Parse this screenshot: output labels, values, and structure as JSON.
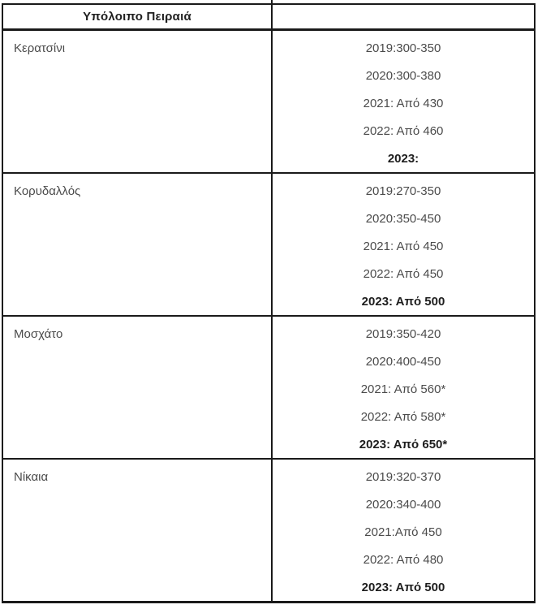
{
  "table": {
    "header": {
      "col1": "Υπόλοιπο Πειραιά",
      "col2": ""
    },
    "rows": [
      {
        "area": "Κερατσίνι",
        "lines": [
          "2019:300-350",
          "2020:300-380",
          "2021: Από 430",
          "2022: Από 460",
          "2023:"
        ]
      },
      {
        "area": "Κορυδαλλός",
        "lines": [
          "2019:270-350",
          "2020:350-450",
          "2021: Από 450",
          "2022: Από 450",
          "2023: Από 500"
        ]
      },
      {
        "area": "Μοσχάτο",
        "lines": [
          "2019:350-420",
          "2020:400-450",
          "2021: Από 560*",
          "2022: Από 580*",
          "2023: Από 650*"
        ]
      },
      {
        "area": "Νίκαια",
        "lines": [
          "2019:320-370",
          "2020:340-400",
          "2021:Από 450",
          "2022: Από 480",
          "2023: Από 500"
        ]
      }
    ]
  }
}
